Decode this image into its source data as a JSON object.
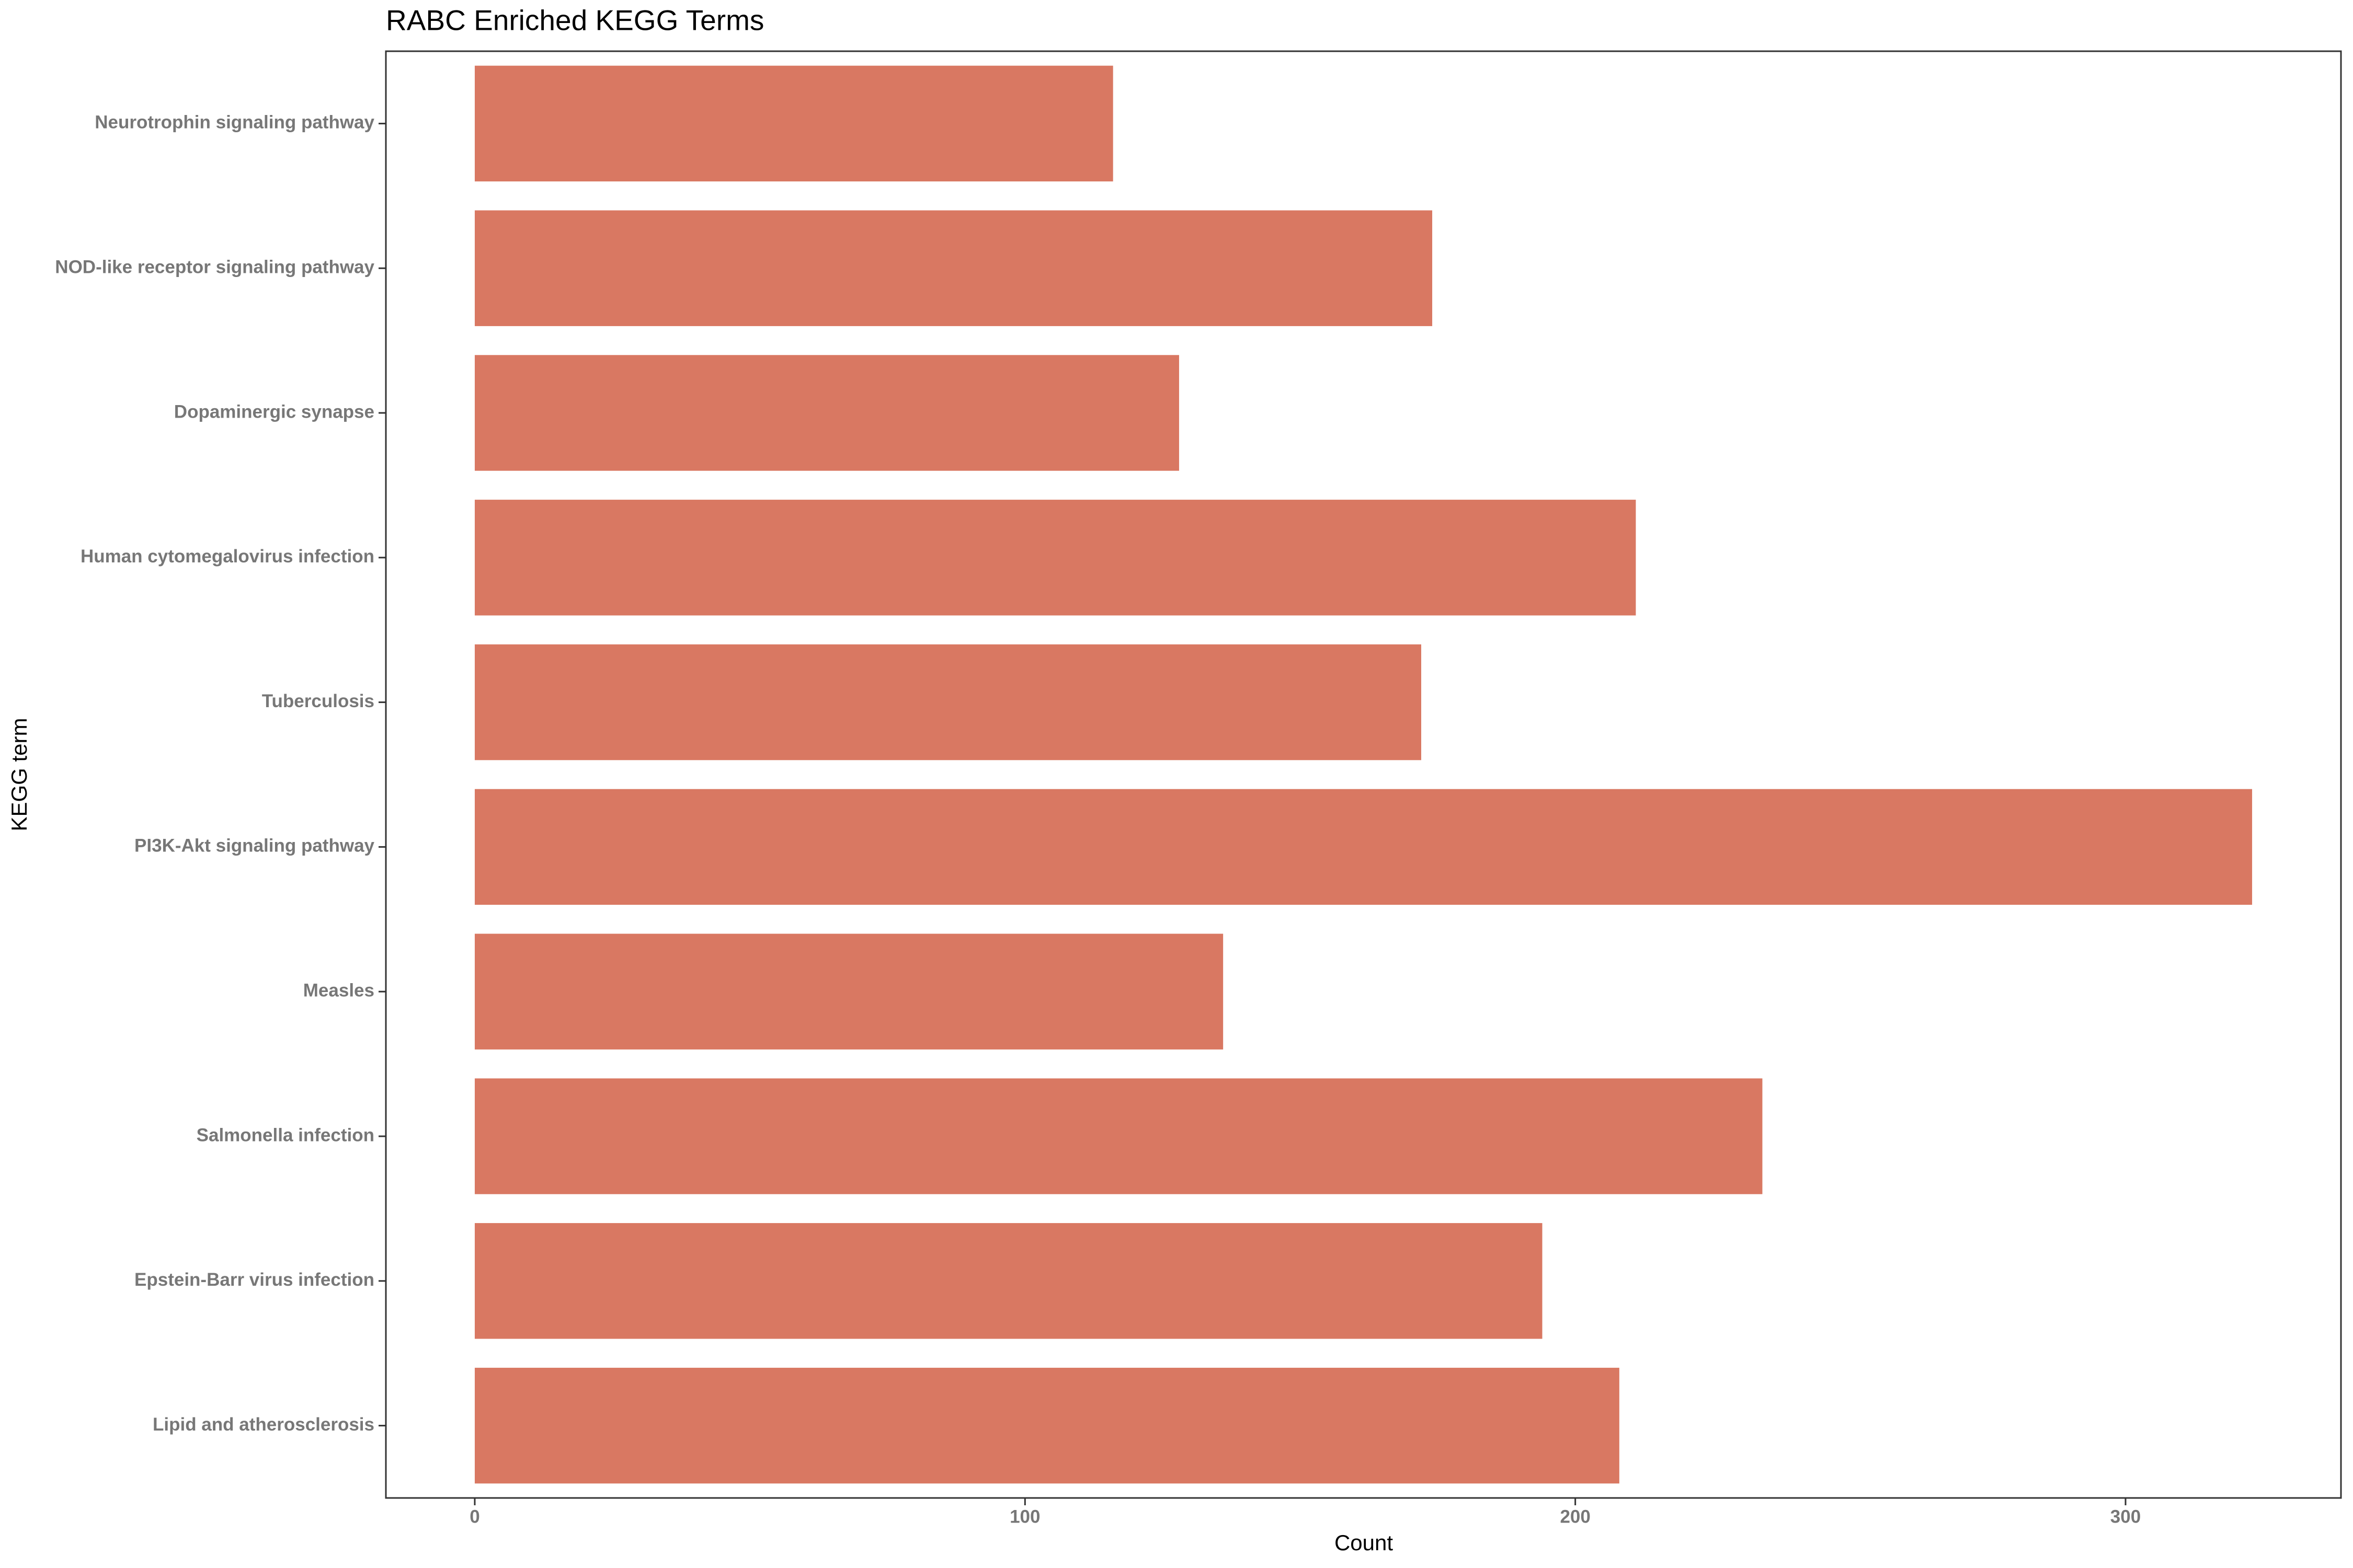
{
  "chart_data": {
    "type": "bar",
    "orientation": "horizontal",
    "title": "RABC Enriched KEGG Terms",
    "x_label": "Count",
    "y_label": "KEGG term",
    "categories": [
      "Neurotrophin signaling pathway",
      "NOD-like receptor signaling pathway",
      "Dopaminergic synapse",
      "Human cytomegalovirus infection",
      "Tuberculosis",
      "PI3K-Akt signaling pathway",
      "Measles",
      "Salmonella infection",
      "Epstein-Barr virus infection",
      "Lipid and atherosclerosis"
    ],
    "values": [
      116,
      174,
      128,
      211,
      172,
      323,
      136,
      234,
      194,
      208
    ],
    "color": "#d97862",
    "xlim": [
      -16.15,
      339.15
    ],
    "xticks": [
      0,
      100,
      200,
      300
    ],
    "grid": false
  }
}
